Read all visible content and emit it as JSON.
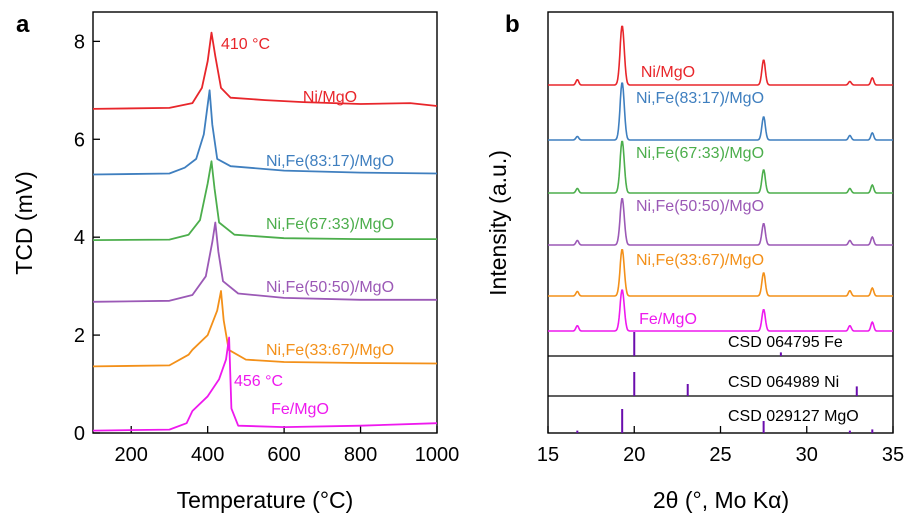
{
  "chart_data": [
    {
      "panel": "a",
      "type": "line",
      "xlabel": "Temperature (°C)",
      "ylabel": "TCD (mV)",
      "xlim": [
        100,
        1000
      ],
      "ylim": [
        0,
        8.6
      ],
      "xticks": [
        "200",
        "400",
        "600",
        "800",
        "1000"
      ],
      "xtick_values": [
        200,
        400,
        600,
        800,
        1000
      ],
      "yticks": [
        "0",
        "2",
        "4",
        "6",
        "8"
      ],
      "ytick_values": [
        0,
        2,
        4,
        6,
        8
      ],
      "grid": false,
      "series": [
        {
          "name": "Ni/MgO",
          "color": "#e8262b",
          "baseline": 6.62,
          "peak_x": 410,
          "peak_y": 8.18,
          "points": [
            [
              100,
              6.62
            ],
            [
              300,
              6.64
            ],
            [
              360,
              6.74
            ],
            [
              385,
              7.05
            ],
            [
              400,
              7.6
            ],
            [
              410,
              8.18
            ],
            [
              420,
              7.7
            ],
            [
              435,
              7.05
            ],
            [
              460,
              6.85
            ],
            [
              550,
              6.8
            ],
            [
              650,
              6.76
            ],
            [
              800,
              6.72
            ],
            [
              930,
              6.74
            ],
            [
              1000,
              6.68
            ]
          ]
        },
        {
          "name": "Ni,Fe(83:17)/MgO",
          "color": "#3f7fbf",
          "baseline": 5.28,
          "peak_x": 405,
          "peak_y": 7.0,
          "points": [
            [
              100,
              5.28
            ],
            [
              300,
              5.3
            ],
            [
              340,
              5.42
            ],
            [
              370,
              5.6
            ],
            [
              390,
              6.1
            ],
            [
              405,
              7.0
            ],
            [
              412,
              6.3
            ],
            [
              425,
              5.6
            ],
            [
              460,
              5.45
            ],
            [
              600,
              5.36
            ],
            [
              800,
              5.32
            ],
            [
              1000,
              5.3
            ]
          ]
        },
        {
          "name": "Ni,Fe(67:33)/MgO",
          "color": "#4cae4c",
          "baseline": 3.94,
          "peak_x": 410,
          "peak_y": 5.55,
          "points": [
            [
              100,
              3.94
            ],
            [
              300,
              3.95
            ],
            [
              350,
              4.05
            ],
            [
              380,
              4.35
            ],
            [
              400,
              5.1
            ],
            [
              410,
              5.55
            ],
            [
              418,
              5.0
            ],
            [
              430,
              4.3
            ],
            [
              470,
              4.05
            ],
            [
              600,
              3.98
            ],
            [
              800,
              3.96
            ],
            [
              1000,
              3.96
            ]
          ]
        },
        {
          "name": "Ni,Fe(50:50)/MgO",
          "color": "#9b59b6",
          "baseline": 2.68,
          "peak_x": 420,
          "peak_y": 4.3,
          "points": [
            [
              100,
              2.68
            ],
            [
              300,
              2.7
            ],
            [
              360,
              2.82
            ],
            [
              395,
              3.2
            ],
            [
              412,
              3.9
            ],
            [
              420,
              4.3
            ],
            [
              428,
              3.7
            ],
            [
              440,
              3.1
            ],
            [
              480,
              2.85
            ],
            [
              600,
              2.76
            ],
            [
              800,
              2.72
            ],
            [
              1000,
              2.72
            ]
          ]
        },
        {
          "name": "Ni,Fe(33:67)/MgO",
          "color": "#f39019",
          "baseline": 1.36,
          "peak_x": 435,
          "peak_y": 2.9,
          "points": [
            [
              100,
              1.36
            ],
            [
              300,
              1.38
            ],
            [
              350,
              1.6
            ],
            [
              360,
              1.7
            ],
            [
              400,
              2.0
            ],
            [
              425,
              2.5
            ],
            [
              435,
              2.9
            ],
            [
              442,
              2.3
            ],
            [
              455,
              1.7
            ],
            [
              500,
              1.5
            ],
            [
              600,
              1.45
            ],
            [
              800,
              1.43
            ],
            [
              1000,
              1.42
            ]
          ]
        },
        {
          "name": "Fe/MgO",
          "color": "#ee19ee",
          "baseline": 0.05,
          "peak_x": 456,
          "peak_y": 1.95,
          "points": [
            [
              100,
              0.05
            ],
            [
              300,
              0.07
            ],
            [
              345,
              0.2
            ],
            [
              360,
              0.45
            ],
            [
              400,
              0.75
            ],
            [
              430,
              1.1
            ],
            [
              448,
              1.5
            ],
            [
              456,
              1.95
            ],
            [
              462,
              0.5
            ],
            [
              480,
              0.15
            ],
            [
              600,
              0.12
            ],
            [
              800,
              0.15
            ],
            [
              1000,
              0.2
            ]
          ]
        }
      ],
      "annotations": [
        {
          "text": "410 °C",
          "color": "#e8262b"
        },
        {
          "text": "456 °C",
          "color": "#ee19ee"
        }
      ]
    },
    {
      "panel": "b",
      "type": "line",
      "xlabel": "2θ (°, Mo Kα)",
      "ylabel": "Intensity (a.u.)",
      "xlim": [
        15,
        35
      ],
      "xticks": [
        "15",
        "20",
        "25",
        "30",
        "35"
      ],
      "xtick_values": [
        15,
        20,
        25,
        30,
        35
      ],
      "grid": false,
      "peak_positions": [
        16.7,
        19.3,
        27.5,
        32.5,
        33.8
      ],
      "series": [
        {
          "name": "Ni/MgO",
          "color": "#e8262b",
          "heights": [
            0.3,
            3.3,
            1.4,
            0.2,
            0.4
          ]
        },
        {
          "name": "Ni,Fe(83:17)/MgO",
          "color": "#3f7fbf",
          "heights": [
            0.2,
            3.2,
            1.3,
            0.25,
            0.4
          ]
        },
        {
          "name": "Ni,Fe(67:33)/MgO",
          "color": "#4cae4c",
          "heights": [
            0.25,
            2.9,
            1.3,
            0.25,
            0.45
          ]
        },
        {
          "name": "Ni,Fe(50:50)/MgO",
          "color": "#9b59b6",
          "heights": [
            0.25,
            2.6,
            1.2,
            0.25,
            0.45
          ]
        },
        {
          "name": "Ni,Fe(33:67)/MgO",
          "color": "#f39019",
          "heights": [
            0.25,
            2.6,
            1.3,
            0.3,
            0.45
          ]
        },
        {
          "name": "Fe/MgO",
          "color": "#ee19ee",
          "heights": [
            0.3,
            2.3,
            1.2,
            0.3,
            0.5
          ]
        }
      ],
      "references": [
        {
          "name": "CSD 064795 Fe",
          "color": "#6a0dad",
          "peaks": [
            [
              20.0,
              1.0
            ],
            [
              28.5,
              0.15
            ]
          ]
        },
        {
          "name": "CSD 064989 Ni",
          "color": "#6a0dad",
          "peaks": [
            [
              20.0,
              1.0
            ],
            [
              23.1,
              0.5
            ],
            [
              32.9,
              0.4
            ]
          ]
        },
        {
          "name": "CSD 029127 MgO",
          "color": "#6a0dad",
          "peaks": [
            [
              16.7,
              0.1
            ],
            [
              19.3,
              1.0
            ],
            [
              27.5,
              0.5
            ],
            [
              32.5,
              0.1
            ],
            [
              33.8,
              0.15
            ]
          ]
        }
      ]
    }
  ],
  "panel_letters": {
    "a": "a",
    "b": "b"
  }
}
